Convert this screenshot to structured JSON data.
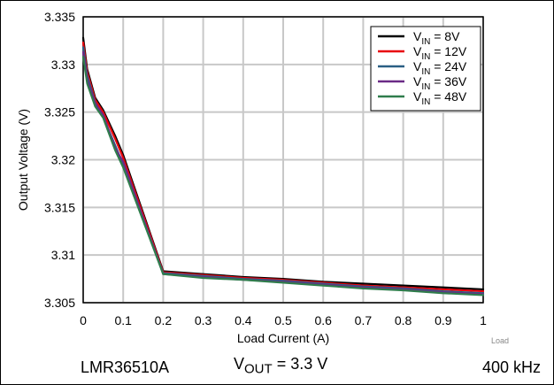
{
  "chart_data": {
    "type": "line",
    "title": "",
    "xlabel": "Load Current (A)",
    "ylabel": "Output Voltage (V)",
    "xlim": [
      0,
      1
    ],
    "ylim": [
      3.305,
      3.335
    ],
    "xticks": [
      0,
      0.1,
      0.2,
      0.3,
      0.4,
      0.5,
      0.6,
      0.7,
      0.8,
      0.9,
      1
    ],
    "yticks": [
      3.305,
      3.31,
      3.315,
      3.32,
      3.325,
      3.33,
      3.335
    ],
    "grid": true,
    "legend_position": "top-right",
    "series": [
      {
        "name": "VIN = 8V",
        "label_base": "V",
        "label_sub": "IN",
        "label_rest": " = 8V",
        "color": "#000000",
        "x": [
          0,
          0.01,
          0.03,
          0.05,
          0.08,
          0.1,
          0.2,
          0.3,
          0.4,
          0.5,
          0.6,
          0.7,
          0.8,
          0.9,
          1.0
        ],
        "y": [
          3.3328,
          3.3295,
          3.3265,
          3.3252,
          3.3225,
          3.3205,
          3.3083,
          3.308,
          3.3077,
          3.3075,
          3.3072,
          3.307,
          3.3068,
          3.3066,
          3.3064
        ]
      },
      {
        "name": "VIN = 12V",
        "label_base": "V",
        "label_sub": "IN",
        "label_rest": " = 12V",
        "color": "#e8000b",
        "x": [
          0,
          0.01,
          0.03,
          0.05,
          0.08,
          0.1,
          0.2,
          0.3,
          0.4,
          0.5,
          0.6,
          0.7,
          0.8,
          0.9,
          1.0
        ],
        "y": [
          3.3323,
          3.3292,
          3.3263,
          3.325,
          3.3222,
          3.3202,
          3.3082,
          3.3079,
          3.3076,
          3.3074,
          3.3071,
          3.3068,
          3.3066,
          3.3064,
          3.3062
        ]
      },
      {
        "name": "VIN = 24V",
        "label_base": "V",
        "label_sub": "IN",
        "label_rest": " = 24V",
        "color": "#2a5f84",
        "x": [
          0,
          0.01,
          0.03,
          0.05,
          0.08,
          0.1,
          0.2,
          0.3,
          0.4,
          0.5,
          0.6,
          0.7,
          0.8,
          0.9,
          1.0
        ],
        "y": [
          3.3318,
          3.3288,
          3.326,
          3.3245,
          3.3215,
          3.3195,
          3.3081,
          3.3078,
          3.3075,
          3.3073,
          3.307,
          3.3067,
          3.3065,
          3.3062,
          3.306
        ]
      },
      {
        "name": "VIN = 36V",
        "label_base": "V",
        "label_sub": "IN",
        "label_rest": " = 36V",
        "color": "#6a2a86",
        "x": [
          0,
          0.01,
          0.03,
          0.05,
          0.08,
          0.1,
          0.2,
          0.3,
          0.4,
          0.5,
          0.6,
          0.7,
          0.8,
          0.9,
          1.0
        ],
        "y": [
          3.3313,
          3.3284,
          3.3259,
          3.3247,
          3.3212,
          3.3198,
          3.308,
          3.3077,
          3.3074,
          3.3072,
          3.3069,
          3.3066,
          3.3064,
          3.3061,
          3.3059
        ]
      },
      {
        "name": "VIN = 48V",
        "label_base": "V",
        "label_sub": "IN",
        "label_rest": " = 48V",
        "color": "#2f7d4c",
        "x": [
          0,
          0.01,
          0.03,
          0.05,
          0.08,
          0.1,
          0.2,
          0.3,
          0.4,
          0.5,
          0.6,
          0.7,
          0.8,
          0.9,
          1.0
        ],
        "y": [
          3.3308,
          3.328,
          3.3256,
          3.3244,
          3.321,
          3.3192,
          3.308,
          3.3076,
          3.3074,
          3.3071,
          3.3068,
          3.3065,
          3.3063,
          3.306,
          3.3058
        ]
      }
    ]
  },
  "footer": {
    "device": "LMR36510A",
    "vout_base": "V",
    "vout_sub": "OUT",
    "vout_rest": " = 3.3 V",
    "frequency": "400 kHz"
  },
  "note": "Load"
}
